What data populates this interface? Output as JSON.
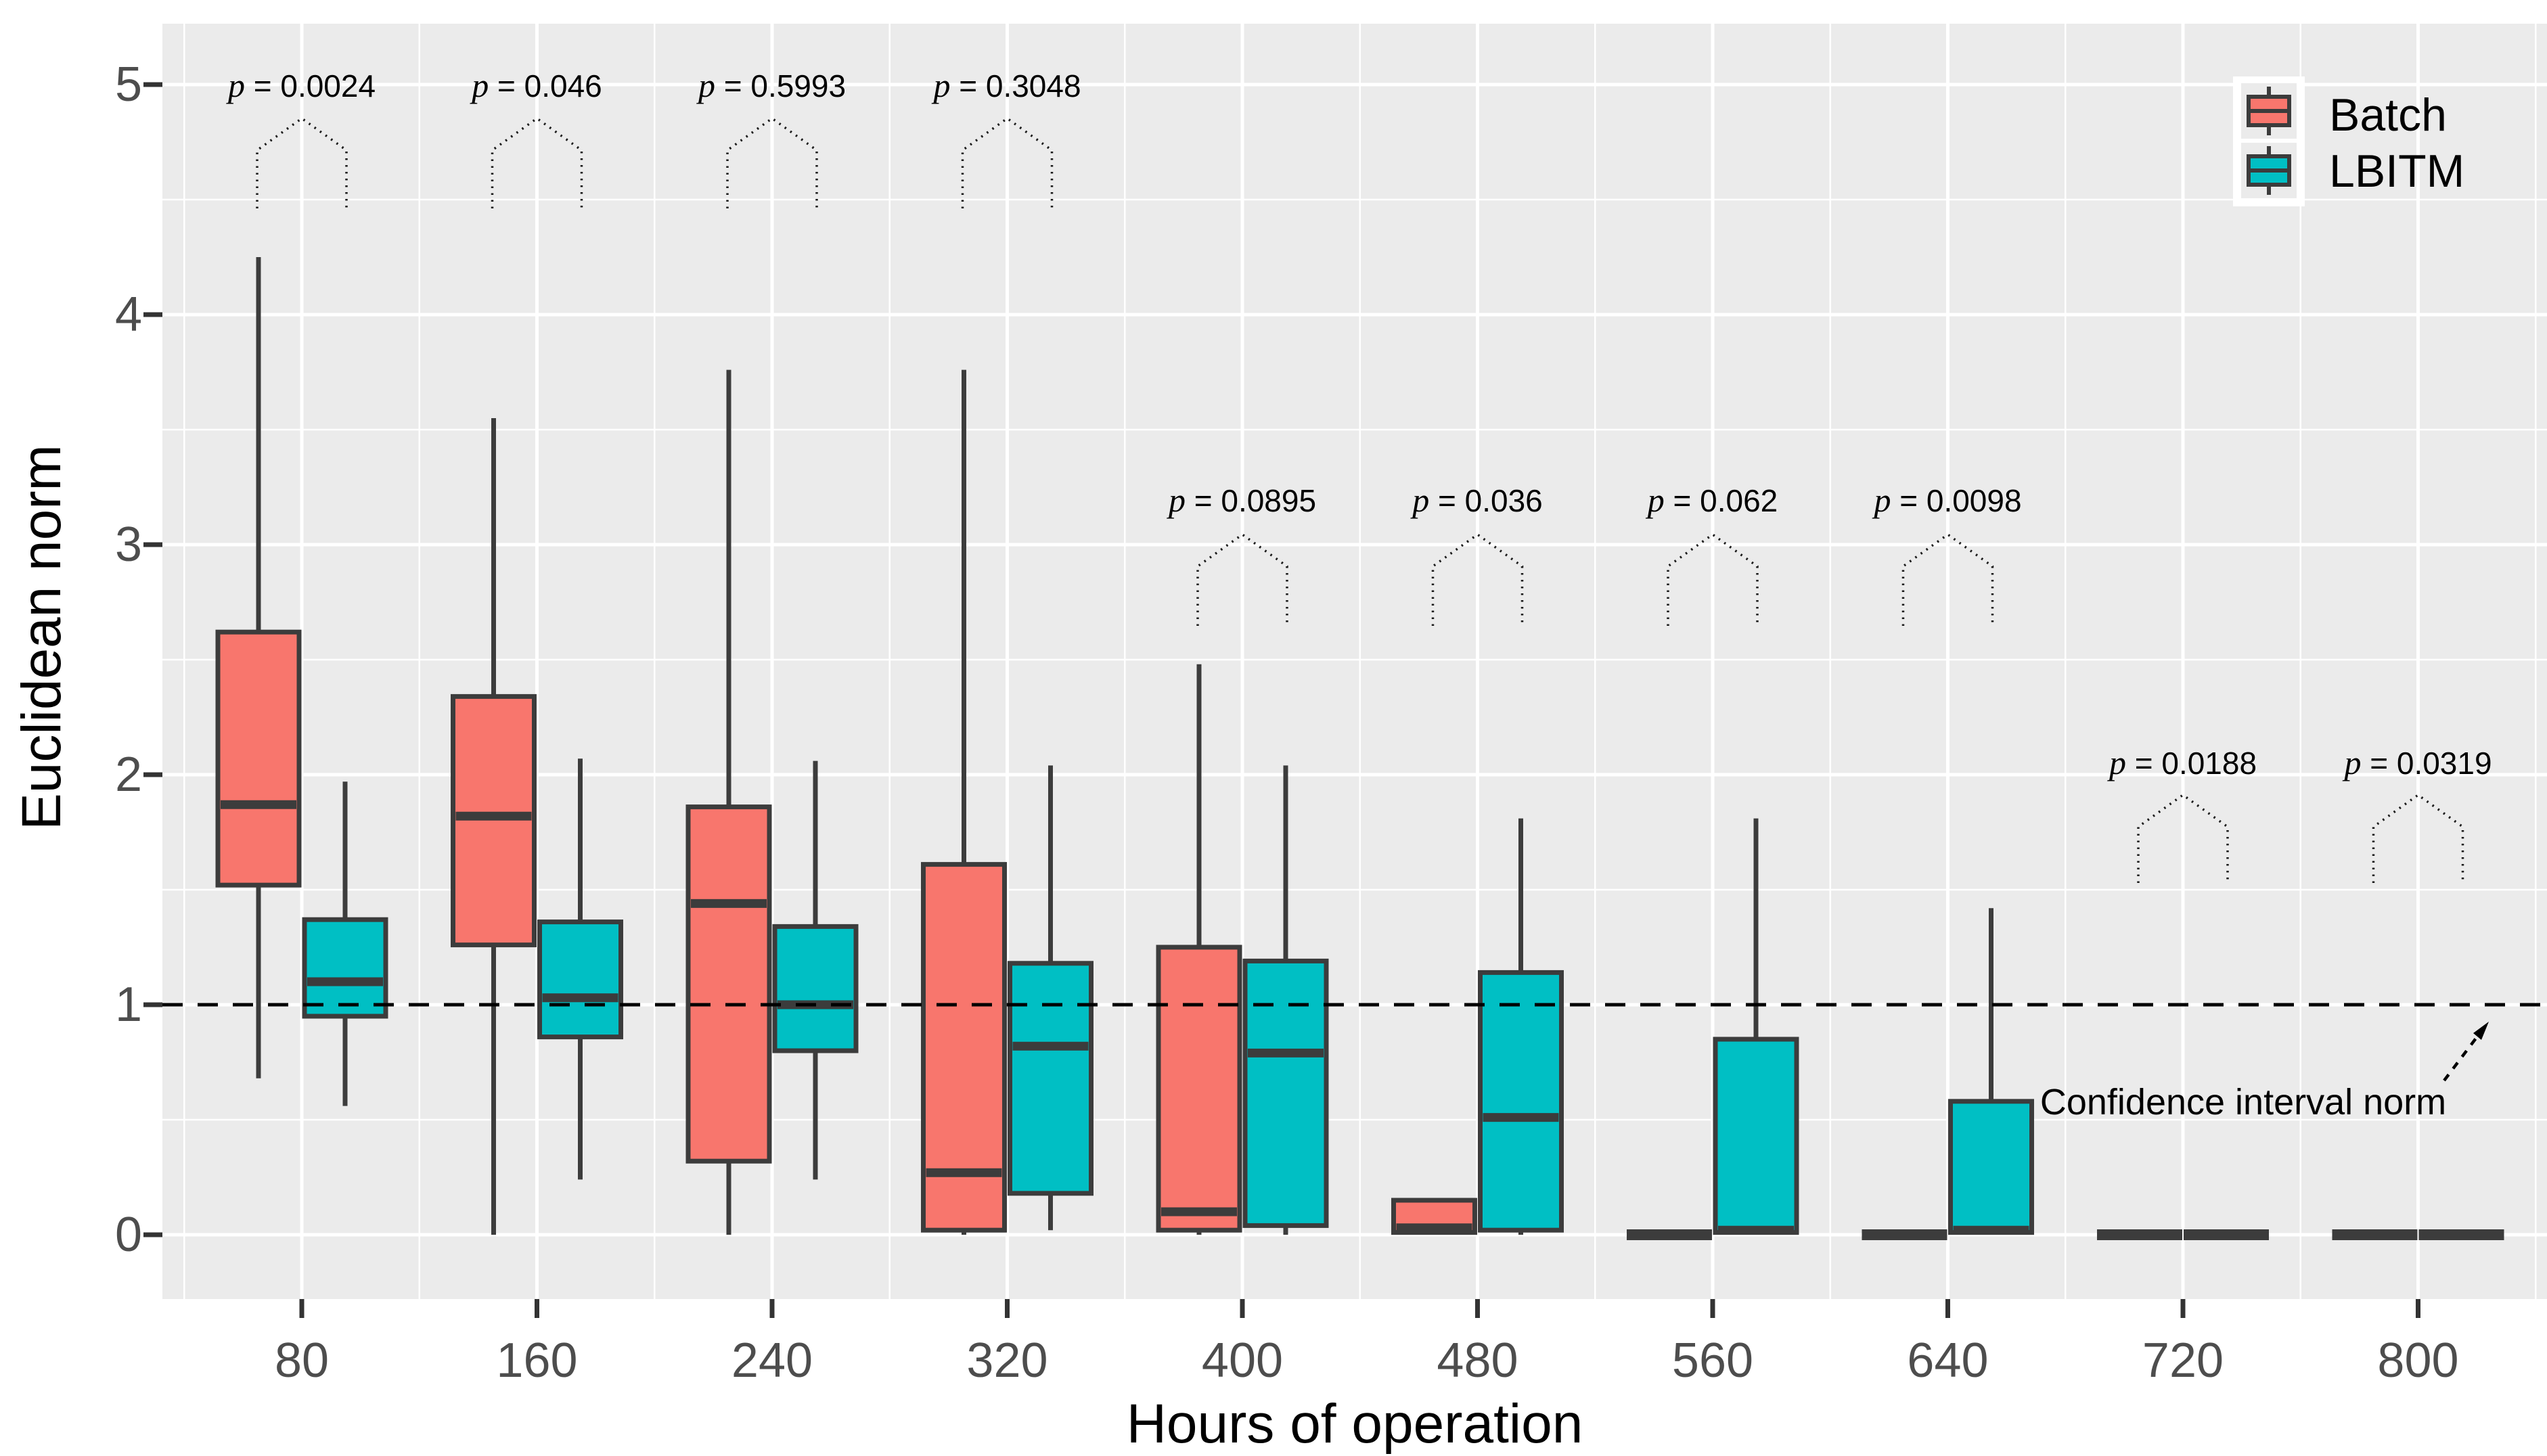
{
  "chart_data": {
    "type": "grouped_boxplot",
    "title": "",
    "xlabel": "Hours of operation",
    "ylabel": "Euclidean norm",
    "ylim": [
      0,
      5.26
    ],
    "y_ticks": [
      0,
      1,
      2,
      3,
      4,
      5
    ],
    "grid": "on",
    "panel_background": "#EBEBEB",
    "gridline_color": "#FFFFFF",
    "legend_position": "top-right-inside",
    "categories": [
      80,
      160,
      240,
      320,
      400,
      480,
      560,
      640,
      720,
      800
    ],
    "stat_order": [
      "whisker_low",
      "q1",
      "median",
      "q3",
      "whisker_high"
    ],
    "series": [
      {
        "name": "Batch",
        "color": "#F8766D",
        "stats": [
          [
            0.68,
            1.52,
            1.87,
            2.62,
            4.25
          ],
          [
            0.0,
            1.26,
            1.82,
            2.34,
            3.55
          ],
          [
            0.0,
            0.32,
            1.44,
            1.86,
            3.76
          ],
          [
            0.0,
            0.02,
            0.27,
            1.61,
            3.76
          ],
          [
            0.0,
            0.02,
            0.1,
            1.25,
            2.48
          ],
          [
            0.0,
            0.01,
            0.03,
            0.15,
            0.15
          ],
          [
            0,
            0,
            0,
            0,
            0
          ],
          [
            0,
            0,
            0,
            0,
            0
          ],
          [
            0,
            0,
            0,
            0,
            0
          ],
          [
            0,
            0,
            0,
            0,
            0
          ]
        ]
      },
      {
        "name": "LBITM",
        "color": "#00BFC4",
        "stats": [
          [
            0.56,
            0.95,
            1.1,
            1.37,
            1.97
          ],
          [
            0.24,
            0.86,
            1.03,
            1.36,
            2.07
          ],
          [
            0.24,
            0.8,
            1.0,
            1.34,
            2.06
          ],
          [
            0.02,
            0.18,
            0.82,
            1.18,
            2.04
          ],
          [
            0.0,
            0.04,
            0.79,
            1.19,
            2.04
          ],
          [
            0.0,
            0.02,
            0.51,
            1.14,
            1.81
          ],
          [
            0.0,
            0.01,
            0.02,
            0.85,
            1.81
          ],
          [
            0.0,
            0.01,
            0.02,
            0.58,
            1.42
          ],
          [
            0,
            0,
            0,
            0,
            0
          ],
          [
            0,
            0,
            0,
            0,
            0
          ]
        ]
      }
    ],
    "p_values": [
      {
        "category": 80,
        "label": "p = 0.0024",
        "row": 0
      },
      {
        "category": 160,
        "label": "p = 0.046",
        "row": 0
      },
      {
        "category": 240,
        "label": "p = 0.5993",
        "row": 0
      },
      {
        "category": 320,
        "label": "p = 0.3048",
        "row": 0
      },
      {
        "category": 400,
        "label": "p = 0.0895",
        "row": 1
      },
      {
        "category": 480,
        "label": "p = 0.036",
        "row": 1
      },
      {
        "category": 560,
        "label": "p = 0.062",
        "row": 1
      },
      {
        "category": 640,
        "label": "p = 0.0098",
        "row": 1
      },
      {
        "category": 720,
        "label": "p = 0.0188",
        "row": 2
      },
      {
        "category": 800,
        "label": "p = 0.0319",
        "row": 2
      }
    ],
    "reference_line": {
      "value": 1,
      "style": "dashed",
      "color": "#000000",
      "label": "Confidence interval norm"
    }
  },
  "styles": {
    "box_border_color": "#3C3C3C",
    "tick_color": "#333333",
    "tick_label_color": "#4D4D4D",
    "brace_color": "#1A1A1A"
  }
}
